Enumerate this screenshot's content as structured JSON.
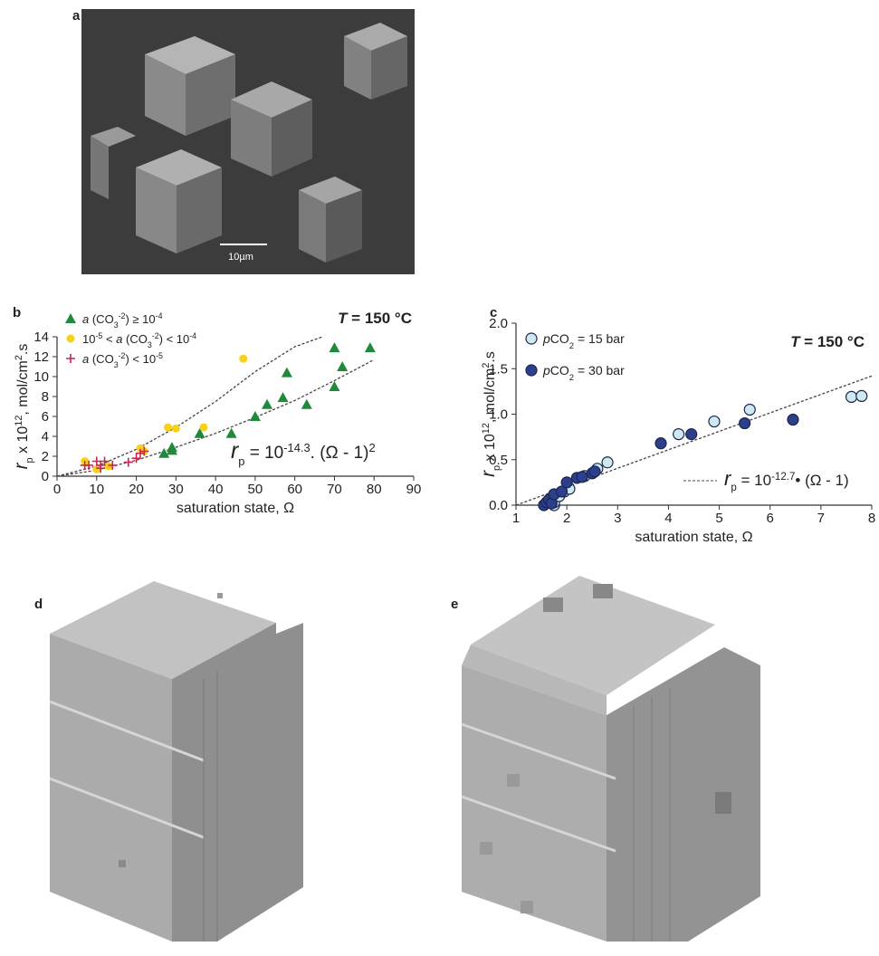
{
  "panels": [
    {
      "label": "a",
      "scale_bar": "10µm"
    },
    {
      "label": "b"
    },
    {
      "label": "c"
    },
    {
      "label": "d"
    },
    {
      "label": "e"
    }
  ],
  "chart_data": [
    {
      "type": "scatter",
      "x_label": "saturation state, Ω",
      "y_label": [
        "r",
        "p",
        " x 10",
        "12",
        ", mol/cm",
        "2",
        ".s"
      ],
      "xlim": [
        0,
        90
      ],
      "ylim": [
        0,
        14
      ],
      "xticks": [
        0,
        10,
        20,
        30,
        40,
        50,
        60,
        70,
        80,
        90
      ],
      "yticks": [
        0,
        2,
        4,
        6,
        8,
        10,
        12,
        14
      ],
      "legend": "upper left",
      "annotations": {
        "temperature": [
          "T",
          " = 150 °C"
        ],
        "equation": [
          "r",
          "p",
          " = 10",
          "-14.3",
          ". (Ω - 1)",
          "2"
        ]
      },
      "series": [
        {
          "name": [
            "a",
            " (CO",
            "3",
            "-2",
            ") ≥ 10",
            "-4"
          ],
          "color": "#1f8a3c",
          "marker": "triangle",
          "x": [
            27,
            29,
            29,
            36,
            44,
            50,
            53,
            57,
            58,
            63,
            70,
            70,
            72,
            79
          ],
          "values": [
            2.3,
            2.6,
            2.9,
            4.3,
            4.3,
            6,
            7.2,
            7.9,
            10.4,
            7.2,
            9,
            12.9,
            11,
            12.9
          ]
        },
        {
          "name": [
            "10",
            "-5",
            " < ",
            "a",
            " (CO",
            "3",
            "-2",
            ") < 10",
            "-4"
          ],
          "color": "#f6d21b",
          "marker": "circle",
          "x": [
            7,
            10,
            13,
            21,
            22,
            28,
            30,
            37,
            47
          ],
          "values": [
            1.5,
            0.7,
            1.0,
            2.8,
            2.5,
            4.9,
            4.8,
            4.9,
            11.8
          ]
        },
        {
          "name": [
            "a",
            " (CO",
            "3",
            "-2",
            ") < 10",
            "-5"
          ],
          "color": "#c8284f",
          "marker": "plus",
          "x": [
            7,
            8,
            10,
            11,
            11,
            12,
            14,
            18,
            20,
            21,
            22
          ],
          "values": [
            1.1,
            1.1,
            1.5,
            1.1,
            0.8,
            1.5,
            1.1,
            1.4,
            1.8,
            2.3,
            2.5
          ]
        }
      ],
      "fit_lines": [
        {
          "x": [
            0,
            10,
            20,
            30,
            40,
            50,
            60,
            67
          ],
          "values": [
            0,
            1.0,
            2.7,
            4.9,
            7.5,
            10.5,
            13.0,
            14
          ]
        },
        {
          "x": [
            0,
            10,
            20,
            30,
            40,
            50,
            60,
            70,
            80
          ],
          "values": [
            0,
            0.6,
            1.6,
            2.9,
            4.3,
            5.9,
            7.6,
            9.6,
            11.7
          ]
        }
      ]
    },
    {
      "type": "scatter",
      "x_label": "saturation state, Ω",
      "y_label": [
        "r",
        "p",
        " x 10",
        "12",
        ", mol/cm",
        "2",
        ".s"
      ],
      "xlim": [
        1,
        8
      ],
      "ylim": [
        0,
        2
      ],
      "xticks": [
        1,
        2,
        3,
        4,
        5,
        6,
        7,
        8
      ],
      "yticks": [
        {
          "value": 0,
          "label": "0.0"
        },
        0.5,
        {
          "value": 1,
          "label": "1.0"
        },
        1.5,
        {
          "value": 2,
          "label": "2.0"
        }
      ],
      "legend": "upper left",
      "annotations": {
        "temperature": [
          "T",
          " = 150 °C"
        ],
        "equation": [
          "r",
          "p",
          " = 10",
          "-12.7",
          "• (Ω - 1)"
        ]
      },
      "series": [
        {
          "name": [
            "p",
            "CO",
            "2",
            " = 15 bar"
          ],
          "color": "#cfe9f1",
          "marker": "circle",
          "x": [
            1.75,
            1.75,
            1.85,
            1.95,
            2.05,
            2.35,
            2.6,
            2.8,
            4.2,
            4.9,
            5.6,
            7.6,
            7.8
          ],
          "values": [
            0.0,
            0.03,
            0.1,
            0.15,
            0.18,
            0.32,
            0.4,
            0.47,
            0.78,
            0.92,
            1.05,
            1.19,
            1.2
          ]
        },
        {
          "name": [
            "p",
            "CO",
            "2",
            " = 30 bar"
          ],
          "color": "#2b3f8c",
          "marker": "circle",
          "x": [
            1.55,
            1.6,
            1.65,
            1.7,
            1.75,
            1.9,
            2.0,
            2.2,
            2.3,
            2.5,
            2.55,
            3.85,
            4.45,
            5.5,
            6.45
          ],
          "values": [
            0,
            0.03,
            0.06,
            0.02,
            0.12,
            0.15,
            0.25,
            0.3,
            0.31,
            0.35,
            0.37,
            0.68,
            0.78,
            0.9,
            0.94
          ]
        }
      ],
      "fit_lines": [
        {
          "x": [
            1,
            8
          ],
          "values": [
            0,
            1.42
          ]
        }
      ]
    }
  ]
}
